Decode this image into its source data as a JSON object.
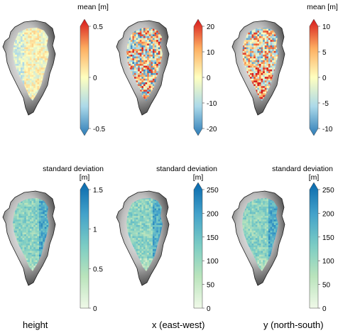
{
  "chart_data": [
    {
      "type": "heatmap",
      "panel": "height",
      "column_label": "height",
      "colorbar": {
        "title": "mean [m]",
        "ticks": [
          "0.5",
          "0",
          "-0.5"
        ],
        "range": [
          -0.5,
          0.5
        ],
        "colormap": "diverging",
        "colors": [
          "#2c7bb6",
          "#abd9e9",
          "#ffffbf",
          "#fdae61",
          "#d7191c"
        ]
      }
    },
    {
      "type": "heatmap",
      "panel": "x (east-west)",
      "colorbar": {
        "title": "",
        "ticks": [
          "20",
          "10",
          "0",
          "-10",
          "-20"
        ],
        "range": [
          -20,
          20
        ],
        "colormap": "diverging",
        "colors": [
          "#2c7bb6",
          "#abd9e9",
          "#ffffbf",
          "#fdae61",
          "#d7191c"
        ]
      }
    },
    {
      "type": "heatmap",
      "panel": "y (north-south)",
      "colorbar": {
        "title": "mean [m]",
        "ticks": [
          "10",
          "5",
          "0",
          "-5",
          "-10"
        ],
        "range": [
          -10,
          10
        ],
        "colormap": "diverging",
        "colors": [
          "#2c7bb6",
          "#abd9e9",
          "#ffffbf",
          "#fdae61",
          "#d7191c"
        ]
      }
    },
    {
      "type": "heatmap",
      "panel": "height",
      "colorbar": {
        "title_line1": "standard deviation",
        "title_line2": "[m]",
        "ticks": [
          "1.5",
          "1",
          "0.5",
          "0"
        ],
        "range": [
          0,
          1.5
        ],
        "colormap": "sequential",
        "colors": [
          "#f0f9e8",
          "#bae4bc",
          "#7bccc4",
          "#43a2ca",
          "#0868ac"
        ]
      }
    },
    {
      "type": "heatmap",
      "panel": "x (east-west)",
      "column_label": "x (east-west)",
      "colorbar": {
        "title_line1": "standard deviation",
        "title_line2": "[m]",
        "ticks": [
          "250",
          "200",
          "150",
          "100",
          "50",
          "0"
        ],
        "range": [
          0,
          250
        ],
        "colormap": "sequential",
        "colors": [
          "#f0f9e8",
          "#bae4bc",
          "#7bccc4",
          "#43a2ca",
          "#0868ac"
        ]
      }
    },
    {
      "type": "heatmap",
      "panel": "y (north-south)",
      "column_label": "y (north-south)",
      "colorbar": {
        "title_line1": "standard deviation",
        "title_line2": "[m]",
        "ticks": [
          "250",
          "200",
          "150",
          "100",
          "50",
          "0"
        ],
        "range": [
          0,
          250
        ],
        "colormap": "sequential",
        "colors": [
          "#f0f9e8",
          "#bae4bc",
          "#7bccc4",
          "#43a2ca",
          "#0868ac"
        ]
      }
    }
  ]
}
